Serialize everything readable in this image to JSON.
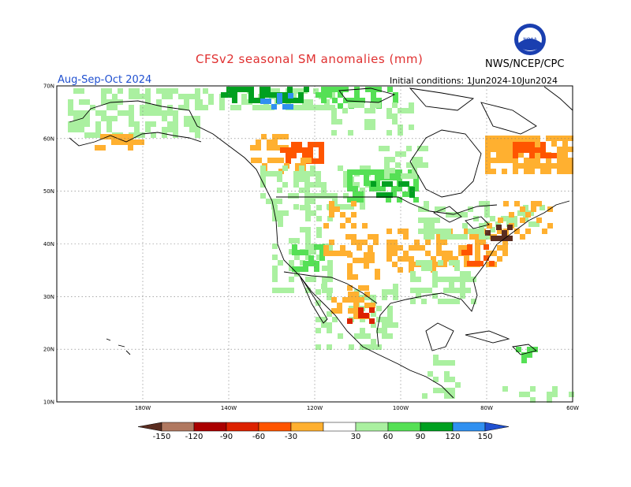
{
  "header": {
    "title": "CFSv2 seasonal SM anomalies (mm)",
    "agency": "NWS/NCEP/CPC",
    "season": "Aug-Sep-Oct 2024",
    "initial_conditions": "Initial conditions: 1Jun2024-10Jun2024",
    "logo_text": "NOAA"
  },
  "map": {
    "lat_labels": [
      "70N",
      "60N",
      "50N",
      "40N",
      "30N",
      "20N",
      "10N"
    ],
    "lon_labels": [
      "180W",
      "140W",
      "120W",
      "100W",
      "80W",
      "60W"
    ],
    "lat_values": [
      70,
      60,
      50,
      40,
      30,
      20,
      10
    ],
    "lon_values": [
      -170,
      -150,
      -130,
      -110,
      -90,
      -70
    ],
    "lon_range": [
      -190,
      -70
    ],
    "lat_range": [
      10,
      70
    ]
  },
  "colorbar": {
    "labels": [
      "-150",
      "-120",
      "-90",
      "-60",
      "-30",
      "30",
      "60",
      "90",
      "120",
      "150"
    ],
    "colors": [
      "#5a2d20",
      "#b07860",
      "#aa0000",
      "#dd2200",
      "#ff5500",
      "#ffb030",
      "#ffffff",
      "#aaf0a0",
      "#55e055",
      "#00a020",
      "#3090f0",
      "#2050d0"
    ]
  },
  "anomaly_legend": {
    "units": "mm"
  },
  "colors": {
    "wet_light": "#aaf0a0",
    "wet_medium": "#55e055",
    "wet_dark": "#00a020",
    "wet_blue": "#3090f0",
    "dry_light": "#ffb030",
    "dry_orange": "#ff5500",
    "dry_red": "#dd2200",
    "dry_brown": "#5a2d20"
  }
}
